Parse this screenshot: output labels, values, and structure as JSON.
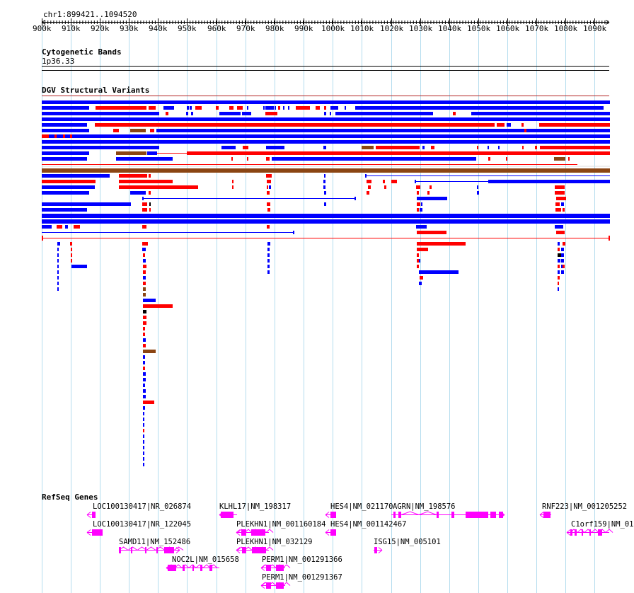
{
  "region": {
    "label": "chr1:899421..1094520"
  },
  "ruler": {
    "ticks": [
      "900k",
      "910k",
      "920k",
      "930k",
      "940k",
      "950k",
      "960k",
      "970k",
      "980k",
      "990k",
      "1000k",
      "1010k",
      "1020k",
      "1030k",
      "1040k",
      "1050k",
      "1060k",
      "1070k",
      "1080k",
      "1090k"
    ]
  },
  "tracks": {
    "cytoband": {
      "title": "Cytogenetic Bands",
      "band": "1p36.33"
    },
    "dgv": {
      "title": "DGV Structural Variants"
    },
    "refseq": {
      "title": "RefSeq Genes"
    }
  },
  "genes": [
    {
      "label": "LOC100130417|NR_026874"
    },
    {
      "label": "KLHL17|NM_198317"
    },
    {
      "label": "HES4|NM_021170"
    },
    {
      "label": "AGRN|NM_198576"
    },
    {
      "label": "RNF223|NM_001205252"
    },
    {
      "label": "LOC100130417|NR_122045"
    },
    {
      "label": "PLEKHN1|NM_001160184"
    },
    {
      "label": "HES4|NM_001142467"
    },
    {
      "label": "C1orf159|NM_01"
    },
    {
      "label": "SAMD11|NM_152486"
    },
    {
      "label": "PLEKHN1|NM_032129"
    },
    {
      "label": "ISG15|NM_005101"
    },
    {
      "label": "NOC2L|NM_015658"
    },
    {
      "label": "PERM1|NM_001291366"
    },
    {
      "label": "PERM1|NM_001291367"
    }
  ],
  "colors": {
    "loss": "#ff0000",
    "gain": "#0000ff",
    "both": "#8b4513",
    "gene": "#ff00ff",
    "grid": "#b3dcee"
  }
}
